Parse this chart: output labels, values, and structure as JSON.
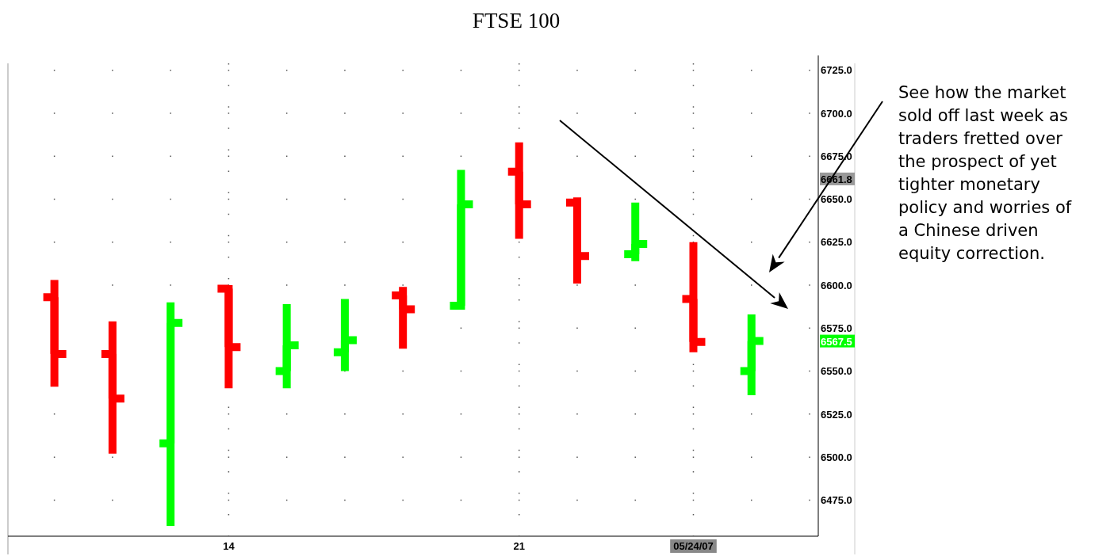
{
  "chart_data": {
    "type": "candlestick",
    "title": "FTSE 100",
    "categories": [
      null,
      null,
      null,
      "14",
      null,
      null,
      null,
      null,
      "21",
      null,
      null,
      "05/24/07",
      null
    ],
    "ohlc": [
      [
        6593,
        6603,
        6541,
        6560
      ],
      [
        6560,
        6579,
        6502,
        6534
      ],
      [
        6508,
        6590,
        6460,
        6578
      ],
      [
        6598,
        6600,
        6540,
        6564
      ],
      [
        6550,
        6589,
        6540,
        6565
      ],
      [
        6561,
        6592,
        6550,
        6568
      ],
      [
        6594,
        6599,
        6563,
        6586
      ],
      [
        6588,
        6667,
        6586,
        6647
      ],
      [
        6666,
        6683,
        6627,
        6647
      ],
      [
        6648,
        6651,
        6601,
        6617
      ],
      [
        6618,
        6648,
        6614,
        6624
      ],
      [
        6592,
        6625,
        6561,
        6567
      ],
      [
        6550,
        6583,
        6536,
        6567.5
      ]
    ],
    "colors": [
      "#ff0000",
      "#ff0000",
      "#00ff00",
      "#ff0000",
      "#00ff00",
      "#00ff00",
      "#ff0000",
      "#00ff00",
      "#ff0000",
      "#ff0000",
      "#00ff00",
      "#ff0000",
      "#00ff00"
    ],
    "ylim": [
      6454,
      6729
    ],
    "yticks": [
      {
        "value": 6475,
        "label": "6475.0"
      },
      {
        "value": 6500,
        "label": "6500.0"
      },
      {
        "value": 6525,
        "label": "6525.0"
      },
      {
        "value": 6550,
        "label": "6550.0"
      },
      {
        "value": 6575,
        "label": "6575.0"
      },
      {
        "value": 6600,
        "label": "6600.0"
      },
      {
        "value": 6625,
        "label": "6625.0"
      },
      {
        "value": 6650,
        "label": "6650.0"
      },
      {
        "value": 6675,
        "label": "6675.0"
      },
      {
        "value": 6700,
        "label": "6700.0"
      },
      {
        "value": 6725,
        "label": "6725.0"
      }
    ],
    "grid": true,
    "annotations": [
      "See how the market sold off last week as traders fretted over the prospect of yet tighter monetary policy and worries of a Chinese driven equity correction.",
      {
        "text": "6661.8",
        "y": 6661.8
      },
      {
        "text": "6567.5",
        "y": 6567.5
      }
    ]
  }
}
